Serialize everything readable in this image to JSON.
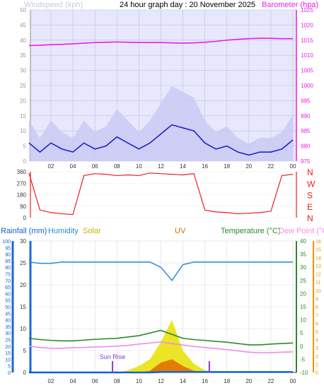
{
  "header": {
    "title": "24 hour graph day : 20 November 2025",
    "left_label": "Windspeed (kph)",
    "right_label": "Barometer (hpa)"
  },
  "colors": {
    "windspeed": "#2222cc",
    "gust_fill": "#c8c8f4",
    "barometer": "#e81ee8",
    "direction": "#e82020",
    "rainfall": "#1060d8",
    "humidity": "#2a88e0",
    "solar": "#e8e000",
    "uv": "#e06a00",
    "temperature": "#2a8a2a",
    "dewpoint": "#ee8ee8",
    "left_axis": "#1e66dd",
    "right_axis_temp": "#2a8a2a",
    "right_axis_uv": "#ff8c00",
    "plot_bg": "#e8e8fc",
    "grid": "#bdbdf2"
  },
  "x_ticks": [
    "02",
    "04",
    "06",
    "08",
    "10",
    "12",
    "14",
    "16",
    "18",
    "20",
    "22",
    "00"
  ],
  "chart_data": [
    {
      "type": "line",
      "name": "wind-barometer",
      "x": [
        0,
        1,
        2,
        3,
        4,
        5,
        6,
        7,
        8,
        9,
        10,
        11,
        12,
        13,
        14,
        15,
        16,
        17,
        18,
        19,
        20,
        21,
        22,
        23,
        24
      ],
      "series": [
        {
          "name": "Windspeed (kph)",
          "axis": "left",
          "values": [
            6,
            3,
            6,
            4,
            3,
            6,
            4,
            5,
            8,
            6,
            4,
            6,
            9,
            12,
            11,
            10,
            6,
            4,
            5,
            3,
            2,
            3,
            3,
            4,
            7
          ]
        },
        {
          "name": "Barometer (hpa)",
          "axis": "right",
          "values": [
            1013.2,
            1013.3,
            1013.5,
            1013.6,
            1013.8,
            1014.0,
            1014.2,
            1014.3,
            1014.4,
            1014.3,
            1014.2,
            1014.2,
            1014.2,
            1014.1,
            1014.0,
            1014.1,
            1014.3,
            1014.6,
            1015.0,
            1015.3,
            1015.5,
            1015.6,
            1015.6,
            1015.5,
            1015.5
          ]
        }
      ],
      "ylim_left": [
        0,
        50
      ],
      "yticks_left": [
        "0",
        "5",
        "10",
        "15",
        "20",
        "25",
        "30",
        "35",
        "40",
        "45",
        "50"
      ],
      "ylim_right": [
        975,
        1025
      ],
      "yticks_right": [
        "975",
        "980",
        "985",
        "990",
        "995",
        "1000",
        "1005",
        "1010",
        "1015",
        "1020",
        "1025"
      ]
    },
    {
      "type": "scatter",
      "name": "wind-direction",
      "x": [
        0,
        1,
        2,
        3,
        4,
        5,
        6,
        7,
        8,
        9,
        10,
        11,
        12,
        13,
        14,
        15,
        16,
        17,
        18,
        19,
        20,
        21,
        22,
        23,
        24
      ],
      "series": [
        {
          "name": "Wind direction",
          "values": [
            350,
            60,
            40,
            30,
            25,
            330,
            345,
            340,
            330,
            335,
            330,
            350,
            345,
            340,
            335,
            345,
            60,
            45,
            40,
            30,
            35,
            40,
            50,
            330,
            340
          ]
        }
      ],
      "ylim": [
        0,
        360
      ],
      "yticks_left": [
        "0",
        "90",
        "180",
        "270",
        "360"
      ],
      "compass": [
        "N",
        "W",
        "S",
        "E",
        "N"
      ]
    },
    {
      "type": "line",
      "name": "rain-humidity-temperature",
      "legend": [
        "Rainfall (mm)",
        "Humidity",
        "Solar",
        "UV",
        "Temperature (°C)",
        "Dew Point (°C)"
      ],
      "sun_label": "Sun Rise",
      "x": [
        0,
        1,
        2,
        3,
        4,
        5,
        6,
        7,
        8,
        9,
        10,
        11,
        12,
        13,
        14,
        15,
        16,
        17,
        18,
        19,
        20,
        21,
        22,
        23,
        24
      ],
      "series": [
        {
          "name": "Humidity",
          "axis": "humidity",
          "values": [
            84,
            83,
            83,
            84,
            84,
            84,
            84,
            84,
            84,
            84,
            84,
            84,
            80,
            70,
            82,
            84,
            84,
            84,
            84,
            84,
            84,
            84,
            84,
            84,
            84
          ]
        },
        {
          "name": "Temperature (°C)",
          "axis": "temperature",
          "values": [
            3,
            2.5,
            2.2,
            2,
            2,
            2.3,
            2.6,
            2.8,
            3,
            3.5,
            4,
            5,
            6,
            4.5,
            3,
            2.5,
            2.2,
            1.8,
            1.5,
            1,
            0.5,
            0.5,
            0.8,
            1,
            1.2
          ]
        },
        {
          "name": "Dew Point (°C)",
          "axis": "temperature",
          "values": [
            0,
            -0.5,
            -0.8,
            -0.8,
            -0.6,
            -0.5,
            -0.3,
            -0.2,
            0,
            0.3,
            0.8,
            1.2,
            1.6,
            1,
            0.4,
            -0.1,
            -0.5,
            -0.9,
            -1.3,
            -1.8,
            -2.3,
            -2.5,
            -2.5,
            -2.3,
            -2.2
          ]
        },
        {
          "name": "Rainfall (mm)",
          "axis": "rain",
          "values": [
            0,
            0,
            0,
            0,
            0,
            0,
            0,
            0,
            0,
            0,
            0,
            0,
            0.1,
            0.1,
            0.1,
            0.1,
            0.1,
            0.1,
            0.1,
            0.1,
            0.1,
            0.1,
            0.1,
            0.1,
            0.1
          ]
        },
        {
          "name": "Solar",
          "axis": "rain",
          "values": [
            0,
            0,
            0,
            0,
            0,
            0,
            0,
            0,
            0,
            0.5,
            1.5,
            3,
            7,
            12,
            5,
            2,
            0.5,
            0,
            0,
            0,
            0,
            0,
            0,
            0,
            0
          ]
        },
        {
          "name": "UV",
          "axis": "uv",
          "values": [
            0,
            0,
            0,
            0,
            0,
            0,
            0,
            0,
            0,
            0,
            0,
            0.2,
            1.2,
            1.6,
            0.8,
            0.2,
            0,
            0,
            0,
            0,
            0,
            0,
            0,
            0,
            0
          ]
        }
      ],
      "markers": [
        7.6,
        16.4
      ],
      "ylim_humidity": [
        0,
        100
      ],
      "yticks_humidity": [
        "0",
        "5",
        "10",
        "15",
        "20",
        "25",
        "30",
        "35",
        "40",
        "45",
        "50",
        "55",
        "60",
        "65",
        "70",
        "75",
        "80",
        "85",
        "90",
        "95",
        "100"
      ],
      "ylim_rain": [
        0,
        30
      ],
      "yticks_rain": [
        "0",
        "5",
        "10",
        "15",
        "20",
        "25",
        "30"
      ],
      "ylim_temperature": [
        -10,
        40
      ],
      "yticks_temperature": [
        "-10",
        "-5",
        "0",
        "5",
        "10",
        "15",
        "20",
        "25",
        "30",
        "35",
        "40"
      ],
      "ylim_uv": [
        0,
        16
      ],
      "yticks_uv": [
        "0",
        "1",
        "2",
        "3",
        "4",
        "5",
        "6",
        "7",
        "8",
        "9",
        "10",
        "11",
        "12",
        "13",
        "14",
        "15",
        "16"
      ]
    }
  ]
}
